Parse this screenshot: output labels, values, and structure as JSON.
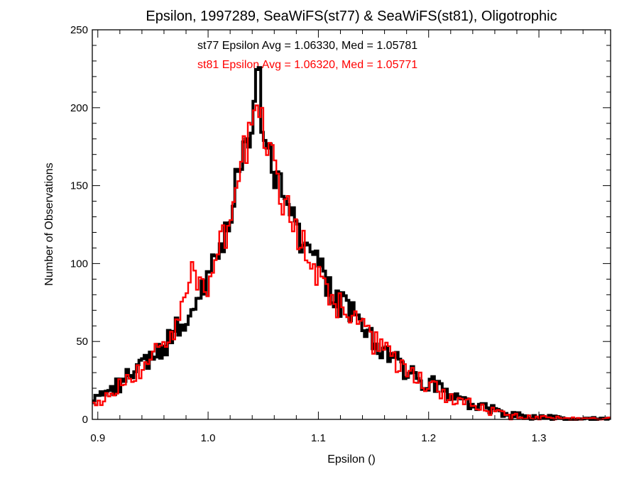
{
  "chart_data": {
    "type": "histogram-step",
    "title": "Epsilon, 1997289, SeaWiFS(st77) & SeaWiFS(st81), Oligotrophic",
    "xlabel": "Epsilon ()",
    "ylabel": "Number of Observations",
    "xlim": [
      0.895,
      1.365
    ],
    "ylim": [
      0,
      250
    ],
    "x_ticks": [
      0.9,
      1.0,
      1.1,
      1.2,
      1.3
    ],
    "x_tick_labels": [
      "0.9",
      "1.0",
      "1.1",
      "1.2",
      "1.3"
    ],
    "y_ticks": [
      0,
      50,
      100,
      150,
      200,
      250
    ],
    "y_tick_labels": [
      "0",
      "50",
      "100",
      "150",
      "200",
      "250"
    ],
    "grid": false,
    "annotations": [
      {
        "text": "st77 Epsilon Avg = 1.06330, Med = 1.05781",
        "color": "#000000"
      },
      {
        "text": "st81 Epsilon Avg = 1.06320, Med = 1.05771",
        "color": "#ff0000"
      }
    ],
    "series": [
      {
        "color": "#000000",
        "x": [
          0.895,
          0.905,
          0.915,
          0.925,
          0.935,
          0.945,
          0.955,
          0.965,
          0.975,
          0.985,
          0.995,
          1.005,
          1.015,
          1.025,
          1.035,
          1.04,
          1.045,
          1.05,
          1.055,
          1.065,
          1.075,
          1.085,
          1.095,
          1.105,
          1.115,
          1.125,
          1.135,
          1.145,
          1.155,
          1.165,
          1.175,
          1.185,
          1.195,
          1.205,
          1.215,
          1.225,
          1.235,
          1.245,
          1.255,
          1.265,
          1.275,
          1.285,
          1.295,
          1.31,
          1.33,
          1.36
        ],
        "y": [
          11,
          14,
          19,
          26,
          29,
          36,
          44,
          50,
          62,
          74,
          84,
          99,
          119,
          148,
          178,
          200,
          222,
          186,
          172,
          150,
          128,
          115,
          101,
          90,
          76,
          70,
          64,
          54,
          49,
          41,
          34,
          30,
          25,
          22,
          18,
          14,
          11,
          9,
          7,
          5,
          3,
          2,
          1,
          1,
          0,
          0
        ]
      },
      {
        "color": "#ff0000",
        "x": [
          0.895,
          0.905,
          0.915,
          0.925,
          0.935,
          0.945,
          0.955,
          0.965,
          0.975,
          0.985,
          0.995,
          1.005,
          1.015,
          1.025,
          1.035,
          1.04,
          1.045,
          1.05,
          1.055,
          1.065,
          1.075,
          1.085,
          1.095,
          1.105,
          1.115,
          1.125,
          1.135,
          1.145,
          1.155,
          1.165,
          1.175,
          1.185,
          1.195,
          1.205,
          1.215,
          1.225,
          1.235,
          1.245,
          1.255,
          1.265,
          1.275,
          1.285,
          1.295,
          1.31,
          1.33,
          1.36
        ],
        "y": [
          10,
          13,
          18,
          25,
          28,
          35,
          46,
          51,
          64,
          93,
          80,
          97,
          117,
          146,
          175,
          198,
          210,
          184,
          170,
          147,
          127,
          117,
          100,
          92,
          74,
          71,
          65,
          52,
          48,
          40,
          33,
          28,
          24,
          20,
          16,
          13,
          10,
          8,
          6,
          4,
          2,
          2,
          1,
          1,
          0,
          0
        ]
      }
    ]
  }
}
